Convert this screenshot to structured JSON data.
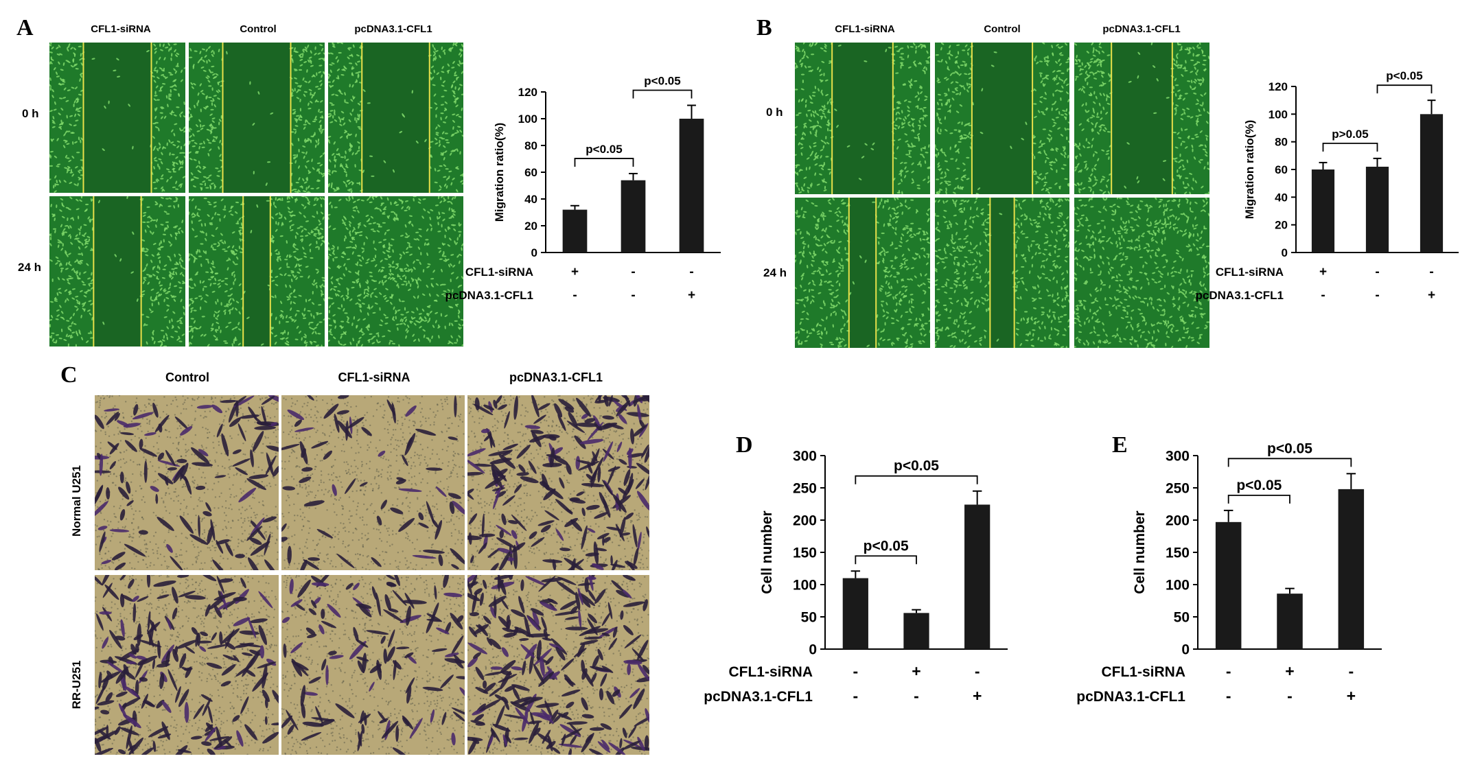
{
  "panels": {
    "A": {
      "letter": "A",
      "columns": [
        "CFL1-siRNA",
        "Control",
        "pcDNA3.1-CFL1"
      ],
      "rows": [
        "0 h",
        "24 h"
      ]
    },
    "B": {
      "letter": "B",
      "columns": [
        "CFL1-siRNA",
        "Control",
        "pcDNA3.1-CFL1"
      ],
      "rows": [
        "0 h",
        "24 h"
      ]
    },
    "C": {
      "letter": "C",
      "columns": [
        "Control",
        "CFL1-siRNA",
        "pcDNA3.1-CFL1"
      ],
      "rows": [
        "Normal U251",
        "RR-U251"
      ]
    },
    "D": {
      "letter": "D"
    },
    "E": {
      "letter": "E"
    }
  },
  "colors": {
    "bar": "#1a1a1a",
    "wound_bg": "#1f7a2a",
    "wound_cell": "#7fd86a",
    "wound_line": "#e8e04a",
    "transwell_bg": "#b8a878",
    "transwell_cell": "#2a1f3a"
  },
  "chart_data": [
    {
      "id": "A",
      "type": "bar",
      "ylabel": "Migration ratio(%)",
      "ylim": [
        0,
        120
      ],
      "yticks": [
        0,
        20,
        40,
        60,
        80,
        100,
        120
      ],
      "values": [
        32,
        54,
        100
      ],
      "errors": [
        3,
        5,
        10
      ],
      "factors": [
        {
          "label": "CFL1-siRNA",
          "signs": [
            "+",
            "-",
            "-"
          ]
        },
        {
          "label": "pcDNA3.1-CFL1",
          "signs": [
            "-",
            "-",
            "+"
          ]
        }
      ],
      "annotations": [
        {
          "from": 0,
          "to": 1,
          "text": "p<0.05"
        },
        {
          "from": 1,
          "to": 2,
          "text": "p<0.05"
        }
      ]
    },
    {
      "id": "B",
      "type": "bar",
      "ylabel": "Migration ratio(%)",
      "ylim": [
        0,
        120
      ],
      "yticks": [
        0,
        20,
        40,
        60,
        80,
        100,
        120
      ],
      "values": [
        60,
        62,
        100
      ],
      "errors": [
        5,
        6,
        10
      ],
      "factors": [
        {
          "label": "CFL1-siRNA",
          "signs": [
            "+",
            "-",
            "-"
          ]
        },
        {
          "label": "pcDNA3.1-CFL1",
          "signs": [
            "-",
            "-",
            "+"
          ]
        }
      ],
      "annotations": [
        {
          "from": 0,
          "to": 1,
          "text": "p>0.05"
        },
        {
          "from": 1,
          "to": 2,
          "text": "p<0.05"
        }
      ]
    },
    {
      "id": "D",
      "type": "bar",
      "ylabel": "Cell number",
      "ylim": [
        0,
        300
      ],
      "yticks": [
        0,
        50,
        100,
        150,
        200,
        250,
        300
      ],
      "values": [
        110,
        56,
        224
      ],
      "errors": [
        11,
        5,
        21
      ],
      "factors": [
        {
          "label": "CFL1-siRNA",
          "signs": [
            "-",
            "+",
            "-"
          ]
        },
        {
          "label": "pcDNA3.1-CFL1",
          "signs": [
            "-",
            "-",
            "+"
          ]
        }
      ],
      "annotations": [
        {
          "from": 0,
          "to": 1,
          "text": "p<0.05"
        },
        {
          "from": 0,
          "to": 2,
          "text": "p<0.05"
        }
      ]
    },
    {
      "id": "E",
      "type": "bar",
      "ylabel": "Cell number",
      "ylim": [
        0,
        300
      ],
      "yticks": [
        0,
        50,
        100,
        150,
        200,
        250,
        300
      ],
      "values": [
        197,
        86,
        248
      ],
      "errors": [
        18,
        8,
        24
      ],
      "factors": [
        {
          "label": "CFL1-siRNA",
          "signs": [
            "-",
            "+",
            "-"
          ]
        },
        {
          "label": "pcDNA3.1-CFL1",
          "signs": [
            "-",
            "-",
            "+"
          ]
        }
      ],
      "annotations": [
        {
          "from": 0,
          "to": 1,
          "text": "p<0.05"
        },
        {
          "from": 0,
          "to": 2,
          "text": "p<0.05"
        }
      ]
    }
  ]
}
